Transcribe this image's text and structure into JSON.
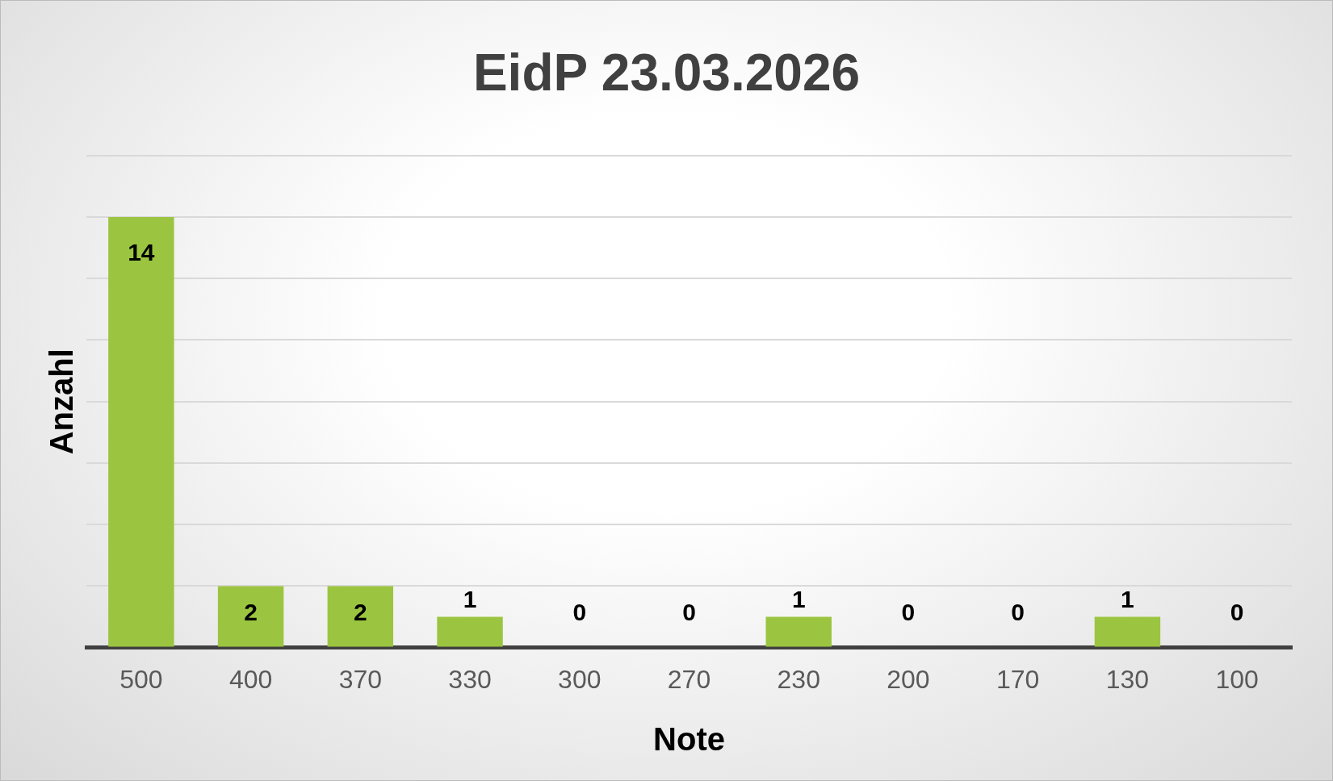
{
  "chart_data": {
    "type": "bar",
    "title": "EidP 23.03.2026",
    "xlabel": "Note",
    "ylabel": "Anzahl",
    "categories": [
      "500",
      "400",
      "370",
      "330",
      "300",
      "270",
      "230",
      "200",
      "170",
      "130",
      "100"
    ],
    "values": [
      14,
      2,
      2,
      1,
      0,
      0,
      1,
      0,
      0,
      1,
      0
    ],
    "color": "#9bc540",
    "grid": "y",
    "tick_labels": "x",
    "data_labels": true
  }
}
